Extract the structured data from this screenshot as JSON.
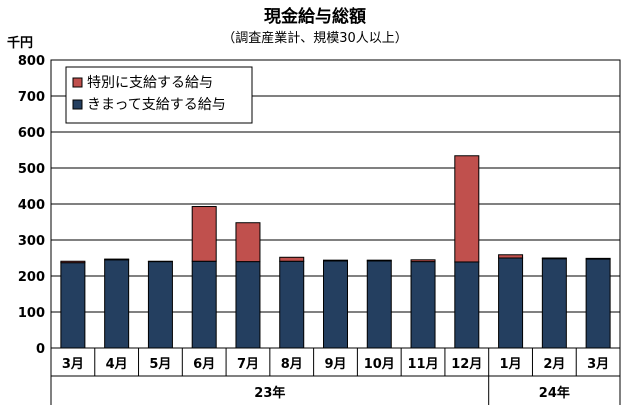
{
  "chart_data": {
    "type": "bar",
    "stacked": true,
    "title": "現金給与総額",
    "subtitle": "（調査産業計、規模30人以上）",
    "y_unit": "千円",
    "ylim": [
      0,
      800
    ],
    "y_ticks": [
      0,
      100,
      200,
      300,
      400,
      500,
      600,
      700,
      800
    ],
    "grid": true,
    "legend_position": "top-left",
    "categories": [
      "3月",
      "4月",
      "5月",
      "6月",
      "7月",
      "8月",
      "9月",
      "10月",
      "11月",
      "12月",
      "1月",
      "2月",
      "3月"
    ],
    "year_groups": [
      {
        "label": "23年",
        "count": 10
      },
      {
        "label": "24年",
        "count": 3
      }
    ],
    "series": [
      {
        "name": "きまって支給する給与",
        "color": "#243f60",
        "values": [
          237,
          245,
          240,
          241,
          240,
          241,
          242,
          242,
          240,
          239,
          250,
          248,
          247
        ]
      },
      {
        "name": "特別に支給する給与",
        "color": "#c0504d",
        "values": [
          4,
          2,
          1,
          152,
          108,
          11,
          2,
          2,
          5,
          295,
          9,
          2,
          2
        ]
      }
    ],
    "legend_order": [
      "特別に支給する給与",
      "きまって支給する給与"
    ]
  }
}
